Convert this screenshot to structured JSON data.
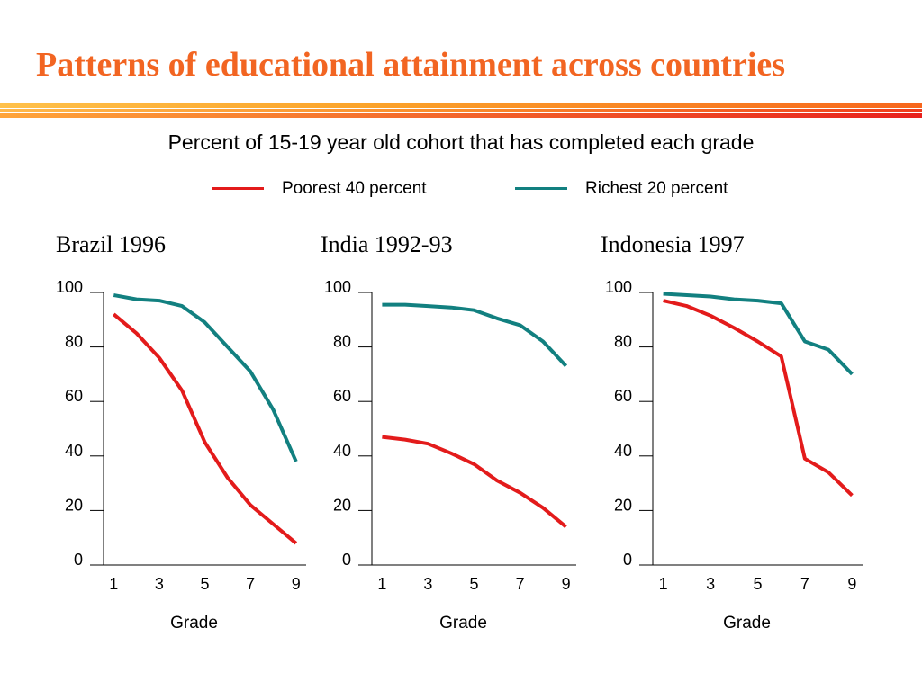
{
  "title": "Patterns of educational attainment across countries",
  "subtitle": "Percent of 15-19 year old cohort that has completed each grade",
  "legend": [
    {
      "label": "Poorest 40 percent",
      "color": "#e31b1b"
    },
    {
      "label": "Richest 20 percent",
      "color": "#128080"
    }
  ],
  "chart_data": [
    {
      "type": "line",
      "title": "Brazil 1996",
      "xlabel": "Grade",
      "ylabel": "",
      "x": [
        1,
        2,
        3,
        4,
        5,
        6,
        7,
        8,
        9
      ],
      "xticks": [
        1,
        3,
        5,
        7,
        9
      ],
      "yticks": [
        0,
        20,
        40,
        60,
        80,
        100
      ],
      "ylim": [
        0,
        100
      ],
      "xlim": [
        1,
        9
      ],
      "series": [
        {
          "name": "Poorest 40 percent",
          "color": "#e31b1b",
          "values": [
            92,
            85,
            76,
            64,
            45,
            32,
            22,
            15,
            8
          ]
        },
        {
          "name": "Richest 20 percent",
          "color": "#128080",
          "values": [
            99,
            97.5,
            97,
            95,
            89,
            80,
            71,
            57,
            38
          ]
        }
      ]
    },
    {
      "type": "line",
      "title": "India 1992-93",
      "xlabel": "Grade",
      "ylabel": "",
      "x": [
        1,
        2,
        3,
        4,
        5,
        6,
        7,
        8,
        9
      ],
      "xticks": [
        1,
        3,
        5,
        7,
        9
      ],
      "yticks": [
        0,
        20,
        40,
        60,
        80,
        100
      ],
      "ylim": [
        0,
        100
      ],
      "xlim": [
        1,
        9
      ],
      "series": [
        {
          "name": "Poorest 40 percent",
          "color": "#e31b1b",
          "values": [
            47,
            46,
            44.5,
            41,
            37,
            31,
            26.5,
            21,
            14
          ]
        },
        {
          "name": "Richest 20 percent",
          "color": "#128080",
          "values": [
            95.5,
            95.5,
            95,
            94.5,
            93.5,
            90.5,
            88,
            82,
            73
          ]
        }
      ]
    },
    {
      "type": "line",
      "title": "Indonesia 1997",
      "xlabel": "Grade",
      "ylabel": "",
      "x": [
        1,
        2,
        3,
        4,
        5,
        6,
        7,
        8,
        9
      ],
      "xticks": [
        1,
        3,
        5,
        7,
        9
      ],
      "yticks": [
        0,
        20,
        40,
        60,
        80,
        100
      ],
      "ylim": [
        0,
        100
      ],
      "xlim": [
        1,
        9
      ],
      "series": [
        {
          "name": "Poorest 40 percent",
          "color": "#e31b1b",
          "values": [
            97,
            95,
            91.5,
            87,
            82,
            76.5,
            39,
            34,
            25.5
          ]
        },
        {
          "name": "Richest 20 percent",
          "color": "#128080",
          "values": [
            99.5,
            99,
            98.5,
            97.5,
            97,
            96,
            82,
            79,
            70
          ]
        }
      ]
    }
  ]
}
